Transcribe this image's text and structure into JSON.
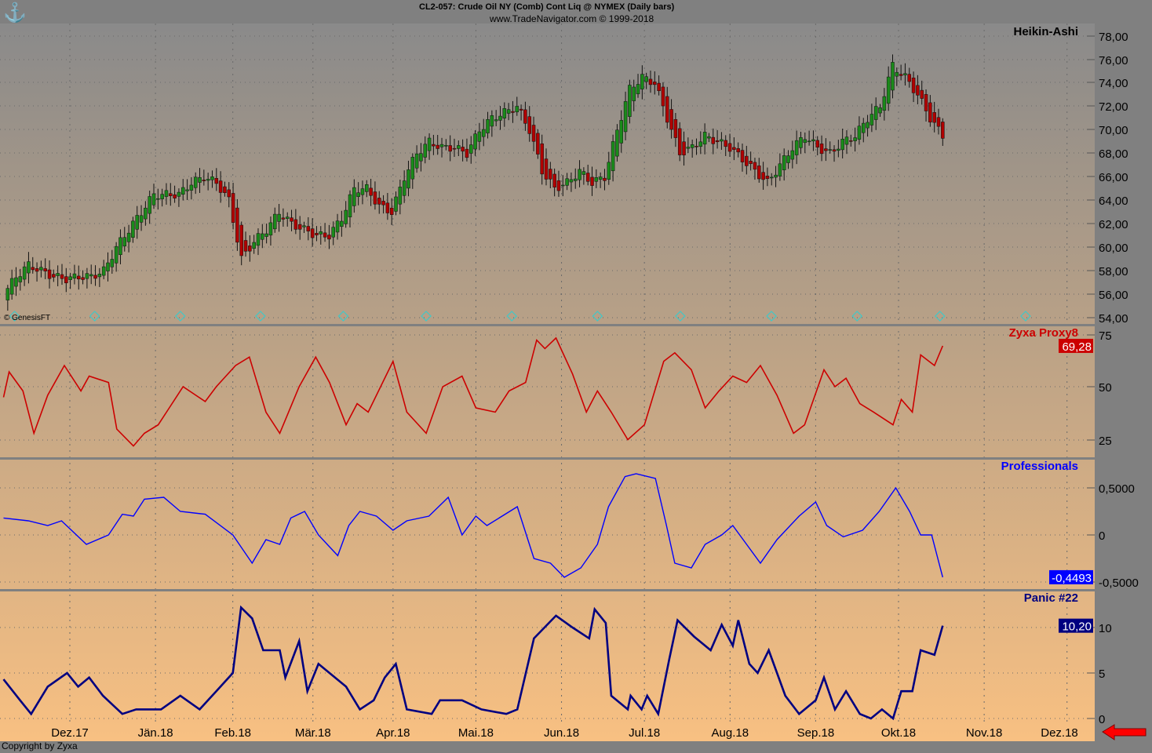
{
  "header": {
    "title": "CL2-057:  Crude Oil NY (Comb) Cont Liq @ NYMEX  (Daily bars)",
    "subtitle": "www.TradeNavigator.com © 1999-2018"
  },
  "footer": {
    "copyright": "Copyright by Zyxa",
    "watermark": "© GenesisFT"
  },
  "colors": {
    "up": "#1a8a1a",
    "down": "#b00000",
    "proxy": "#cc0000",
    "pros": "#0000ff",
    "panic": "#000080",
    "bg_top": "#8a8a8a",
    "bg_bottom": "#f8c082",
    "axis_bg": "#808080",
    "marker": "#40c8c8"
  },
  "chart_data": [
    {
      "type": "candlestick",
      "title": "Heikin-Ashi",
      "x_unit": "days since 1 Dec 2017",
      "start_day": -24,
      "end_day": 316,
      "closes": [
        56,
        57.5,
        58.5,
        58,
        57.5,
        57.3,
        57.5,
        57.5,
        58,
        60,
        61.5,
        63,
        64.5,
        64.5,
        64.5,
        65.5,
        66,
        65.5,
        64,
        59,
        60.5,
        61.5,
        63,
        62,
        61.5,
        61,
        61,
        62.5,
        65,
        65,
        63.5,
        63,
        66,
        68,
        69,
        68.5,
        68.5,
        68,
        70,
        71,
        71.5,
        72,
        70,
        66.5,
        65,
        65.5,
        66.5,
        65.5,
        66,
        70,
        73.5,
        74.5,
        74,
        71,
        68,
        68.5,
        69.5,
        69,
        68.5,
        67.5,
        66.5,
        65.5,
        67,
        68.5,
        69.5,
        68.5,
        68,
        69,
        69.5,
        71,
        72,
        75.5,
        74.5,
        73,
        71,
        69.5
      ],
      "ylim": [
        54,
        78
      ],
      "yticks": [
        "78,00",
        "76,00",
        "74,00",
        "72,00",
        "70,00",
        "68,00",
        "66,00",
        "64,00",
        "62,00",
        "60,00",
        "58,00",
        "56,00",
        "54,00"
      ],
      "marker_days": [
        -20,
        9,
        40,
        69,
        99,
        129,
        160,
        191,
        221,
        254,
        285,
        315,
        346
      ]
    },
    {
      "type": "line",
      "title": "Zyxa Proxy8",
      "ylim": [
        20,
        78
      ],
      "yticks": [
        "75",
        "50",
        "25"
      ],
      "last_value": "69,28",
      "points": [
        [
          -24,
          45
        ],
        [
          -22,
          57
        ],
        [
          -17,
          48
        ],
        [
          -13,
          28
        ],
        [
          -8,
          46
        ],
        [
          -2,
          60
        ],
        [
          4,
          48
        ],
        [
          7,
          55
        ],
        [
          14,
          52
        ],
        [
          17,
          30
        ],
        [
          23,
          22
        ],
        [
          27,
          28
        ],
        [
          32,
          32
        ],
        [
          36,
          40
        ],
        [
          41,
          50
        ],
        [
          49,
          43
        ],
        [
          53,
          50
        ],
        [
          60,
          60
        ],
        [
          65,
          64
        ],
        [
          71,
          38
        ],
        [
          76,
          28
        ],
        [
          83,
          50
        ],
        [
          89,
          64
        ],
        [
          94,
          52
        ],
        [
          100,
          32
        ],
        [
          104,
          42
        ],
        [
          108,
          38
        ],
        [
          117,
          62
        ],
        [
          122,
          38
        ],
        [
          129,
          28
        ],
        [
          135,
          50
        ],
        [
          142,
          55
        ],
        [
          147,
          40
        ],
        [
          154,
          38
        ],
        [
          159,
          48
        ],
        [
          165,
          52
        ],
        [
          169,
          72
        ],
        [
          172,
          68
        ],
        [
          176,
          73
        ],
        [
          182,
          56
        ],
        [
          187,
          38
        ],
        [
          191,
          48
        ],
        [
          196,
          38
        ],
        [
          202,
          25
        ],
        [
          208,
          32
        ],
        [
          215,
          62
        ],
        [
          219,
          66
        ],
        [
          225,
          58
        ],
        [
          230,
          40
        ],
        [
          235,
          48
        ],
        [
          240,
          55
        ],
        [
          245,
          52
        ],
        [
          250,
          60
        ],
        [
          256,
          46
        ],
        [
          262,
          28
        ],
        [
          266,
          32
        ],
        [
          273,
          58
        ],
        [
          277,
          50
        ],
        [
          281,
          54
        ],
        [
          286,
          42
        ],
        [
          291,
          38
        ],
        [
          298,
          32
        ],
        [
          301,
          44
        ],
        [
          305,
          38
        ],
        [
          308,
          65
        ],
        [
          313,
          60
        ],
        [
          316,
          69.28
        ]
      ]
    },
    {
      "type": "line",
      "title": "Professionals",
      "ylim": [
        -0.52,
        0.82
      ],
      "yticks": [
        "0,5000",
        "0",
        "-0,5000"
      ],
      "last_value": "-0,4493",
      "points": [
        [
          -24,
          0.18
        ],
        [
          -15,
          0.15
        ],
        [
          -8,
          0.1
        ],
        [
          -3,
          0.15
        ],
        [
          6,
          -0.1
        ],
        [
          14,
          0
        ],
        [
          19,
          0.22
        ],
        [
          23,
          0.2
        ],
        [
          27,
          0.38
        ],
        [
          34,
          0.4
        ],
        [
          40,
          0.25
        ],
        [
          49,
          0.22
        ],
        [
          59,
          0
        ],
        [
          66,
          -0.3
        ],
        [
          71,
          -0.05
        ],
        [
          76,
          -0.1
        ],
        [
          80,
          0.18
        ],
        [
          85,
          0.25
        ],
        [
          90,
          0
        ],
        [
          97,
          -0.22
        ],
        [
          101,
          0.1
        ],
        [
          105,
          0.25
        ],
        [
          111,
          0.2
        ],
        [
          117,
          0.05
        ],
        [
          122,
          0.15
        ],
        [
          130,
          0.2
        ],
        [
          137,
          0.4
        ],
        [
          142,
          0
        ],
        [
          147,
          0.2
        ],
        [
          151,
          0.1
        ],
        [
          162,
          0.3
        ],
        [
          168,
          -0.25
        ],
        [
          174,
          -0.3
        ],
        [
          179,
          -0.45
        ],
        [
          185,
          -0.35
        ],
        [
          191,
          -0.1
        ],
        [
          195,
          0.3
        ],
        [
          201,
          0.62
        ],
        [
          205,
          0.65
        ],
        [
          212,
          0.6
        ],
        [
          216,
          0.1
        ],
        [
          219,
          -0.3
        ],
        [
          225,
          -0.35
        ],
        [
          230,
          -0.1
        ],
        [
          236,
          0
        ],
        [
          240,
          0.1
        ],
        [
          245,
          -0.1
        ],
        [
          250,
          -0.3
        ],
        [
          256,
          -0.05
        ],
        [
          264,
          0.2
        ],
        [
          270,
          0.35
        ],
        [
          274,
          0.1
        ],
        [
          280,
          -0.02
        ],
        [
          287,
          0.05
        ],
        [
          293,
          0.25
        ],
        [
          299,
          0.5
        ],
        [
          304,
          0.25
        ],
        [
          308,
          0
        ],
        [
          312,
          0
        ],
        [
          316,
          -0.4493
        ]
      ]
    },
    {
      "type": "line",
      "title": "Panic #22",
      "ylim": [
        -0.8,
        14
      ],
      "yticks": [
        "10",
        "5",
        "0"
      ],
      "last_value": "10,20",
      "points": [
        [
          -24,
          4.3
        ],
        [
          -18,
          2
        ],
        [
          -14,
          0.5
        ],
        [
          -8,
          3.5
        ],
        [
          -1,
          5
        ],
        [
          3,
          3.5
        ],
        [
          7,
          4.5
        ],
        [
          12,
          2.5
        ],
        [
          19,
          0.5
        ],
        [
          24,
          1
        ],
        [
          33,
          1
        ],
        [
          40,
          2.5
        ],
        [
          47,
          1
        ],
        [
          53,
          3
        ],
        [
          59,
          5
        ],
        [
          62,
          12.2
        ],
        [
          66,
          11
        ],
        [
          70,
          7.5
        ],
        [
          76,
          7.5
        ],
        [
          78,
          4.5
        ],
        [
          83,
          8.5
        ],
        [
          86,
          3
        ],
        [
          90,
          6
        ],
        [
          94,
          5
        ],
        [
          100,
          3.5
        ],
        [
          105,
          1
        ],
        [
          110,
          2
        ],
        [
          114,
          4.5
        ],
        [
          118,
          6
        ],
        [
          122,
          1
        ],
        [
          131,
          0.5
        ],
        [
          134,
          2
        ],
        [
          142,
          2
        ],
        [
          149,
          1
        ],
        [
          158,
          0.5
        ],
        [
          162,
          1
        ],
        [
          168,
          8.8
        ],
        [
          176,
          11.3
        ],
        [
          182,
          10
        ],
        [
          188,
          8.8
        ],
        [
          190,
          12
        ],
        [
          194,
          10.5
        ],
        [
          196,
          2.5
        ],
        [
          202,
          1
        ],
        [
          203,
          2.5
        ],
        [
          207,
          1
        ],
        [
          209,
          2.5
        ],
        [
          213,
          0.5
        ],
        [
          217,
          6.5
        ],
        [
          220,
          10.8
        ],
        [
          226,
          9
        ],
        [
          232,
          7.5
        ],
        [
          236,
          10.3
        ],
        [
          240,
          8
        ],
        [
          242,
          10.8
        ],
        [
          246,
          6
        ],
        [
          249,
          5
        ],
        [
          253,
          7.5
        ],
        [
          259,
          2.5
        ],
        [
          264,
          0.5
        ],
        [
          270,
          2
        ],
        [
          273,
          4.5
        ],
        [
          277,
          1
        ],
        [
          281,
          3
        ],
        [
          286,
          0.5
        ],
        [
          290,
          0
        ],
        [
          294,
          1
        ],
        [
          298,
          0
        ],
        [
          301,
          3
        ],
        [
          305,
          3
        ],
        [
          308,
          7.5
        ],
        [
          313,
          7
        ],
        [
          316,
          10.2
        ]
      ]
    }
  ],
  "x_axis": {
    "labels": [
      "Dez.17",
      "Jän.18",
      "Feb.18",
      "Mär.18",
      "Apr.18",
      "Mai.18",
      "Jun.18",
      "Jul.18",
      "Aug.18",
      "Sep.18",
      "Okt.18",
      "Nov.18",
      "Dez.18"
    ],
    "days": [
      0,
      31,
      59,
      88,
      117,
      147,
      178,
      208,
      239,
      270,
      300,
      331,
      361
    ]
  }
}
